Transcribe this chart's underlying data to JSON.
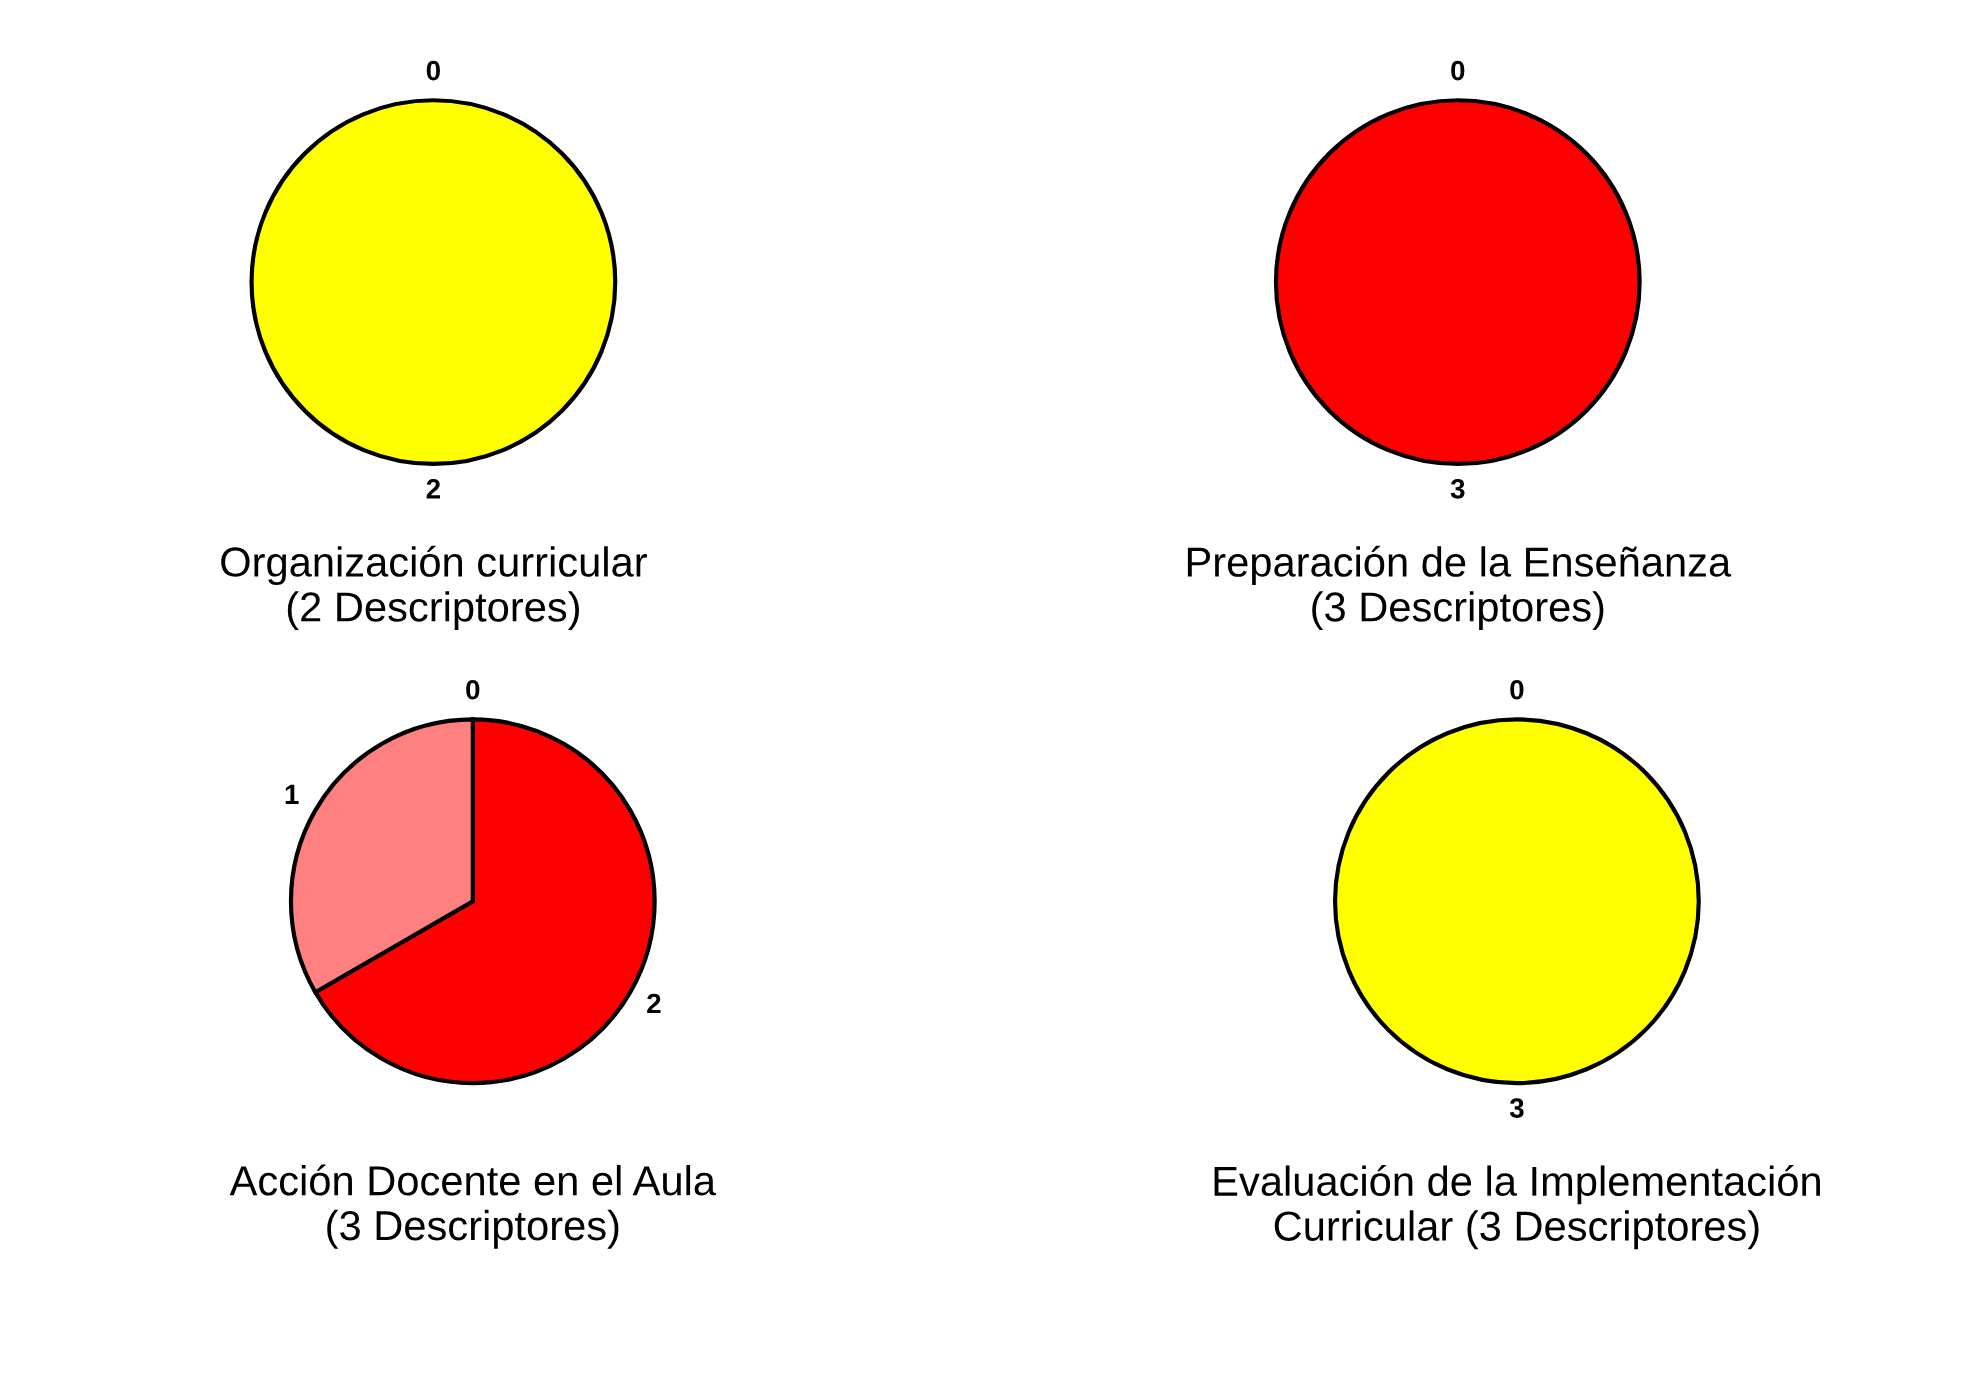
{
  "chart_data": [
    {
      "type": "pie",
      "title": "Organización curricular\n(2 Descriptores)",
      "categories": [
        null,
        null
      ],
      "values": [
        0,
        2
      ],
      "colors": [
        "#ff0000",
        "#ffff00"
      ],
      "value_labels": [
        "0",
        "2"
      ]
    },
    {
      "type": "pie",
      "title": "Preparación de la Enseñanza\n(3 Descriptores)",
      "categories": [
        null,
        null
      ],
      "values": [
        0,
        3
      ],
      "colors": [
        "#ffff00",
        "#ff0000"
      ],
      "value_labels": [
        "0",
        "3"
      ]
    },
    {
      "type": "pie",
      "title": "Acción Docente en el Aula\n(3 Descriptores)",
      "categories": [
        null,
        null,
        null
      ],
      "values": [
        0,
        2,
        1
      ],
      "colors": [
        "#ffff00",
        "#ff0000",
        "#ff8080"
      ],
      "value_labels": [
        "0",
        "2",
        "1"
      ]
    },
    {
      "type": "pie",
      "title": "Evaluación de la Implementación\nCurricular (3 Descriptores)",
      "categories": [
        null,
        null
      ],
      "values": [
        0,
        3
      ],
      "colors": [
        "#ff0000",
        "#ffff00"
      ],
      "value_labels": [
        "0",
        "3"
      ]
    }
  ]
}
